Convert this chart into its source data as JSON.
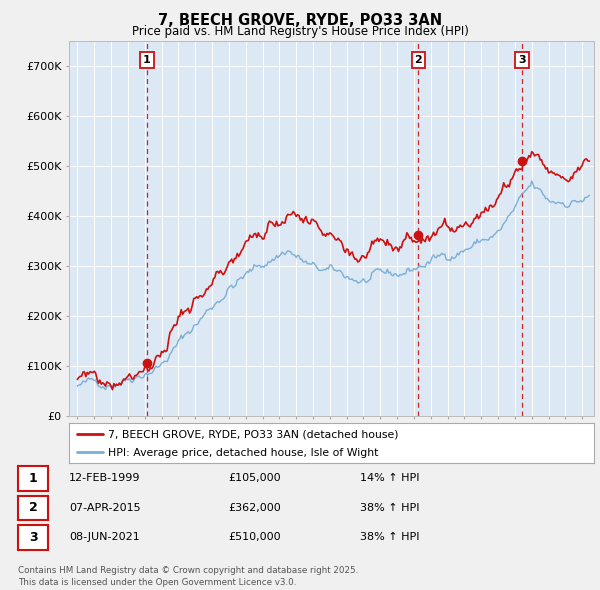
{
  "title": "7, BEECH GROVE, RYDE, PO33 3AN",
  "subtitle": "Price paid vs. HM Land Registry's House Price Index (HPI)",
  "sale_dates_decimal": [
    1999.11,
    2015.27,
    2021.44
  ],
  "sale_prices": [
    105000,
    362000,
    510000
  ],
  "sale_labels": [
    "1",
    "2",
    "3"
  ],
  "hpi_color": "#7bafd4",
  "price_color": "#cc1111",
  "vline_color": "#cc1111",
  "ylim": [
    0,
    750000
  ],
  "xlim_left": 1994.5,
  "xlim_right": 2025.7,
  "legend_label_red": "7, BEECH GROVE, RYDE, PO33 3AN (detached house)",
  "legend_label_blue": "HPI: Average price, detached house, Isle of Wight",
  "table_entries": [
    {
      "num": "1",
      "date": "12-FEB-1999",
      "price": "£105,000",
      "change": "14% ↑ HPI"
    },
    {
      "num": "2",
      "date": "07-APR-2015",
      "price": "£362,000",
      "change": "38% ↑ HPI"
    },
    {
      "num": "3",
      "date": "08-JUN-2021",
      "price": "£510,000",
      "change": "38% ↑ HPI"
    }
  ],
  "footnote": "Contains HM Land Registry data © Crown copyright and database right 2025.\nThis data is licensed under the Open Government Licence v3.0.",
  "background_color": "#f0f0f0",
  "plot_bg_color": "#dde8f5",
  "grid_color": "#ffffff"
}
